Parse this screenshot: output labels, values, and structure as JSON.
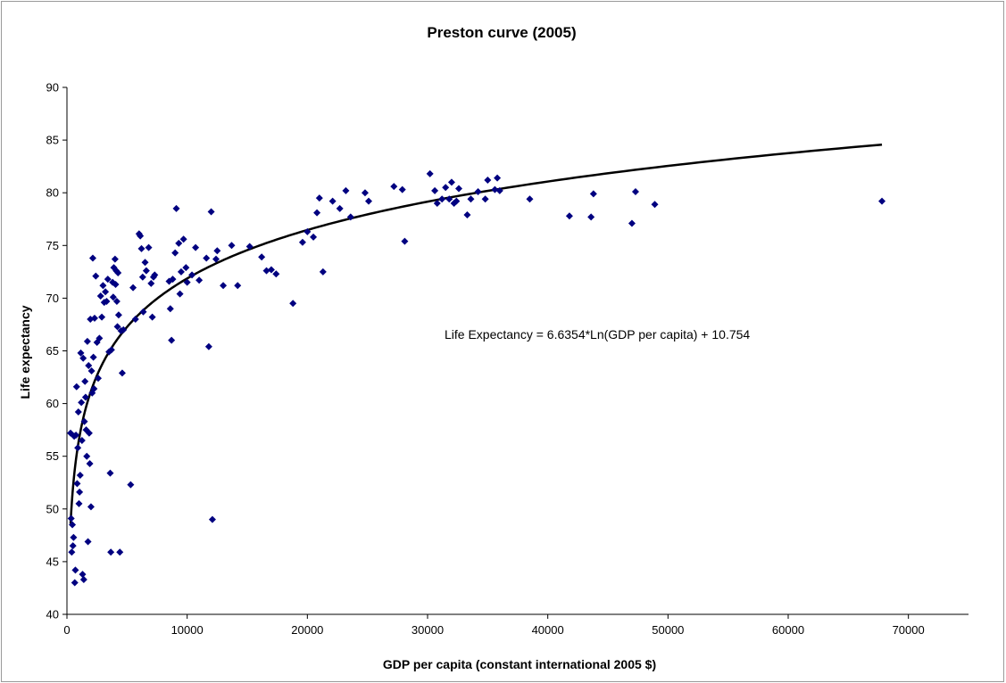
{
  "chart_data": {
    "type": "scatter",
    "title": "Preston curve (2005)",
    "xlabel": "GDP per capita (constant international 2005 $)",
    "ylabel": "Life expectancy",
    "xlim": [
      0,
      75000
    ],
    "ylim": [
      40,
      90
    ],
    "xticks": [
      0,
      10000,
      20000,
      30000,
      40000,
      50000,
      60000,
      70000
    ],
    "yticks": [
      40,
      45,
      50,
      55,
      60,
      65,
      70,
      75,
      80,
      85,
      90
    ],
    "grid": false,
    "legend": "none",
    "marker_color": "#000080",
    "trendline": {
      "type": "logarithmic",
      "a": 6.6354,
      "b": 10.754,
      "x_range": [
        300,
        67800
      ],
      "color": "#000000",
      "label": "Life Expectancy = 6.6354*Ln(GDP per capita) + 10.754"
    },
    "points": [
      [
        300,
        57.2
      ],
      [
        350,
        49.1
      ],
      [
        400,
        45.9
      ],
      [
        450,
        48.5
      ],
      [
        500,
        46.5
      ],
      [
        550,
        47.3
      ],
      [
        600,
        56.9
      ],
      [
        650,
        43.0
      ],
      [
        700,
        44.2
      ],
      [
        750,
        57.0
      ],
      [
        800,
        61.6
      ],
      [
        850,
        52.4
      ],
      [
        900,
        55.8
      ],
      [
        950,
        59.2
      ],
      [
        1000,
        50.5
      ],
      [
        1050,
        51.6
      ],
      [
        1100,
        53.2
      ],
      [
        1150,
        64.8
      ],
      [
        1200,
        60.1
      ],
      [
        1250,
        56.5
      ],
      [
        1300,
        43.8
      ],
      [
        1350,
        64.3
      ],
      [
        1400,
        43.3
      ],
      [
        1450,
        58.3
      ],
      [
        1500,
        62.1
      ],
      [
        1550,
        60.6
      ],
      [
        1600,
        57.5
      ],
      [
        1650,
        55.0
      ],
      [
        1700,
        65.9
      ],
      [
        1750,
        46.9
      ],
      [
        1800,
        63.6
      ],
      [
        1850,
        57.2
      ],
      [
        1900,
        54.3
      ],
      [
        1950,
        68.0
      ],
      [
        2000,
        50.2
      ],
      [
        2050,
        63.1
      ],
      [
        2100,
        61.0
      ],
      [
        2150,
        73.8
      ],
      [
        2200,
        64.4
      ],
      [
        2250,
        61.4
      ],
      [
        2300,
        68.1
      ],
      [
        2400,
        72.1
      ],
      [
        2500,
        65.8
      ],
      [
        2600,
        62.4
      ],
      [
        2700,
        66.2
      ],
      [
        2800,
        70.2
      ],
      [
        2900,
        68.2
      ],
      [
        3000,
        71.2
      ],
      [
        3100,
        69.6
      ],
      [
        3200,
        70.6
      ],
      [
        3300,
        69.7
      ],
      [
        3400,
        71.8
      ],
      [
        3500,
        64.9
      ],
      [
        3600,
        53.4
      ],
      [
        3650,
        45.9
      ],
      [
        3700,
        65.1
      ],
      [
        3800,
        71.5
      ],
      [
        3850,
        70.1
      ],
      [
        3900,
        72.9
      ],
      [
        4000,
        73.7
      ],
      [
        4050,
        71.3
      ],
      [
        4100,
        72.6
      ],
      [
        4150,
        69.7
      ],
      [
        4200,
        67.3
      ],
      [
        4250,
        72.4
      ],
      [
        4300,
        68.4
      ],
      [
        4400,
        45.9
      ],
      [
        4500,
        66.9
      ],
      [
        4600,
        62.9
      ],
      [
        4700,
        67.0
      ],
      [
        5300,
        52.3
      ],
      [
        5500,
        71.0
      ],
      [
        5700,
        68.0
      ],
      [
        6000,
        76.1
      ],
      [
        6100,
        75.9
      ],
      [
        6200,
        74.7
      ],
      [
        6300,
        72.0
      ],
      [
        6350,
        68.7
      ],
      [
        6500,
        73.4
      ],
      [
        6600,
        72.6
      ],
      [
        6800,
        74.8
      ],
      [
        7000,
        71.4
      ],
      [
        7100,
        68.2
      ],
      [
        7200,
        72.0
      ],
      [
        7300,
        72.2
      ],
      [
        8500,
        71.6
      ],
      [
        8600,
        69.0
      ],
      [
        8700,
        66.0
      ],
      [
        8800,
        71.8
      ],
      [
        9000,
        74.3
      ],
      [
        9100,
        78.5
      ],
      [
        9300,
        75.2
      ],
      [
        9400,
        70.4
      ],
      [
        9500,
        72.5
      ],
      [
        9700,
        75.6
      ],
      [
        9900,
        72.9
      ],
      [
        10000,
        71.5
      ],
      [
        10400,
        72.2
      ],
      [
        10700,
        74.8
      ],
      [
        11000,
        71.7
      ],
      [
        11600,
        73.8
      ],
      [
        11800,
        65.4
      ],
      [
        12000,
        78.2
      ],
      [
        12100,
        49.0
      ],
      [
        12400,
        73.7
      ],
      [
        12500,
        74.5
      ],
      [
        13000,
        71.2
      ],
      [
        13700,
        75.0
      ],
      [
        14200,
        71.2
      ],
      [
        15200,
        74.9
      ],
      [
        16200,
        73.9
      ],
      [
        16600,
        72.6
      ],
      [
        17000,
        72.7
      ],
      [
        17400,
        72.3
      ],
      [
        18800,
        69.5
      ],
      [
        19600,
        75.3
      ],
      [
        20000,
        76.3
      ],
      [
        20500,
        75.8
      ],
      [
        20800,
        78.1
      ],
      [
        21000,
        79.5
      ],
      [
        21300,
        72.5
      ],
      [
        22100,
        79.2
      ],
      [
        22700,
        78.5
      ],
      [
        23200,
        80.2
      ],
      [
        23600,
        77.7
      ],
      [
        24800,
        80.0
      ],
      [
        25100,
        79.2
      ],
      [
        27200,
        80.6
      ],
      [
        27900,
        80.3
      ],
      [
        28100,
        75.4
      ],
      [
        30200,
        81.8
      ],
      [
        30600,
        80.2
      ],
      [
        30800,
        79.0
      ],
      [
        31200,
        79.4
      ],
      [
        31500,
        80.5
      ],
      [
        31800,
        79.4
      ],
      [
        32000,
        81.0
      ],
      [
        32200,
        79.0
      ],
      [
        32400,
        79.2
      ],
      [
        32600,
        80.4
      ],
      [
        33300,
        77.9
      ],
      [
        33600,
        79.4
      ],
      [
        34200,
        80.1
      ],
      [
        34800,
        79.4
      ],
      [
        35000,
        81.2
      ],
      [
        35600,
        80.3
      ],
      [
        35800,
        81.4
      ],
      [
        36000,
        80.2
      ],
      [
        38500,
        79.4
      ],
      [
        41800,
        77.8
      ],
      [
        43600,
        77.7
      ],
      [
        43800,
        79.9
      ],
      [
        47000,
        77.1
      ],
      [
        47300,
        80.1
      ],
      [
        48900,
        78.9
      ],
      [
        67800,
        79.2
      ]
    ]
  }
}
